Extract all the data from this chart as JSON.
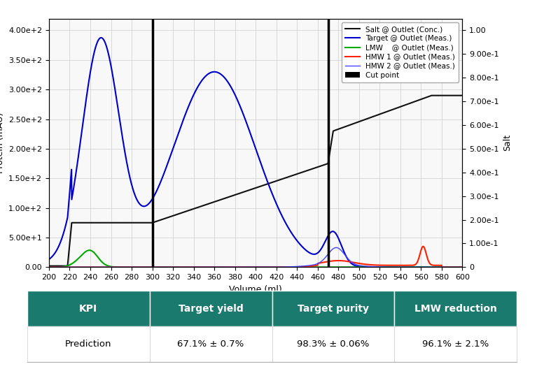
{
  "xlim": [
    200,
    600
  ],
  "ylim_left": [
    0,
    420
  ],
  "ylim_right": [
    0,
    1.05
  ],
  "xlabel": "Volume (ml)",
  "ylabel_left": "Protein (mAU)",
  "ylabel_right": "Salt",
  "cut_points": [
    300,
    470
  ],
  "title_bg_color": "#1a7a6e",
  "title_text_color": "#ffffff",
  "table_headers": [
    "KPI",
    "Target yield",
    "Target purity",
    "LMW reduction"
  ],
  "table_row": [
    "Prediction",
    "67.1% ± 0.7%",
    "98.3% ± 0.06%",
    "96.1% ± 2.1%"
  ],
  "bg_color": "#f5f5f5",
  "grid_color": "#cccccc"
}
